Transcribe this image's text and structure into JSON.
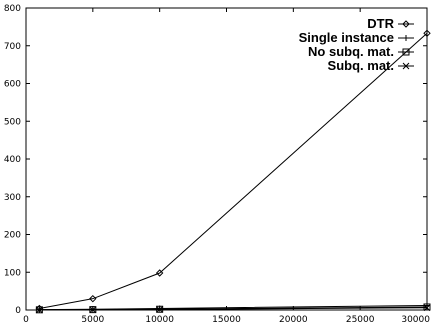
{
  "chart_data": {
    "type": "line",
    "title": "",
    "xlabel": "",
    "ylabel": "",
    "xlim": [
      0,
      30000
    ],
    "ylim": [
      0,
      800
    ],
    "x_ticks": [
      0,
      5000,
      10000,
      15000,
      20000,
      25000,
      30000
    ],
    "y_ticks": [
      0,
      100,
      200,
      300,
      400,
      500,
      600,
      700,
      800
    ],
    "grid": false,
    "legend_position": "top-right",
    "series": [
      {
        "name": "DTR",
        "marker": "diamond",
        "x": [
          1000,
          5000,
          10000,
          30000
        ],
        "y": [
          4,
          30,
          98,
          733
        ]
      },
      {
        "name": "Single instance",
        "marker": "plus",
        "x": [
          1000,
          5000,
          10000,
          30000
        ],
        "y": [
          1,
          2,
          4,
          12
        ]
      },
      {
        "name": "No subq. mat.",
        "marker": "square",
        "x": [
          1000,
          5000,
          10000,
          30000
        ],
        "y": [
          0.5,
          1,
          2,
          8
        ]
      },
      {
        "name": "Subq. mat.",
        "marker": "cross",
        "x": [
          1000,
          5000,
          10000,
          30000
        ],
        "y": [
          0.3,
          0.8,
          1.5,
          6
        ]
      }
    ]
  }
}
